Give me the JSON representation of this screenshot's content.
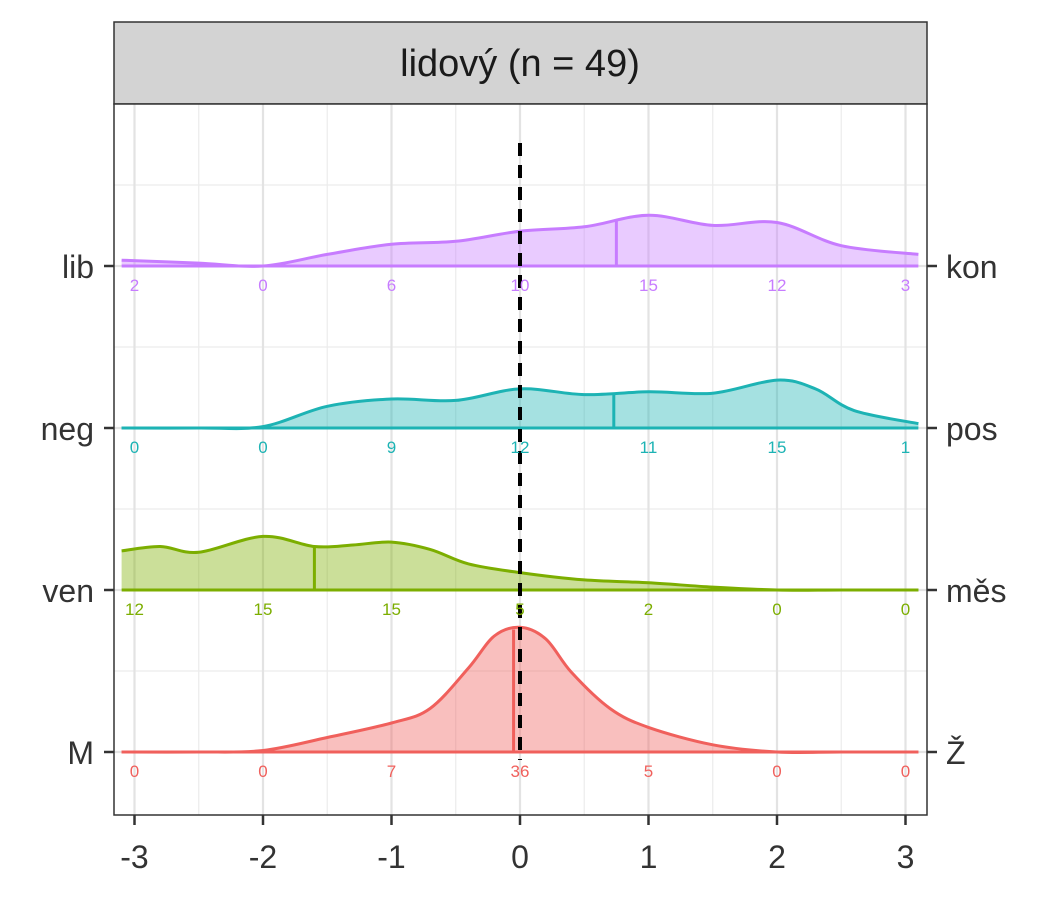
{
  "chart_data": {
    "type": "ridgeline-density",
    "title": "lidový (n = 49)",
    "xlim": [
      -3,
      3
    ],
    "x_ticks": [
      -3,
      -2,
      -1,
      0,
      1,
      2,
      3
    ],
    "x_tick_labels": [
      "-3",
      "-2",
      "-1",
      "0",
      "1",
      "2",
      "3"
    ],
    "reference_line_x": 0,
    "grid": true,
    "series": [
      {
        "left_label": "M",
        "right_label": "Ž",
        "color": "#F0605C",
        "mean": -0.05,
        "counts": [
          "0",
          "0",
          "7",
          "36",
          "5",
          "0",
          "0"
        ],
        "density_x": [
          -3.1,
          -2.5,
          -2.0,
          -1.5,
          -1.0,
          -0.7,
          -0.4,
          -0.2,
          0.0,
          0.2,
          0.4,
          0.7,
          1.0,
          1.5,
          2.0,
          2.5,
          3.1
        ],
        "density_y": [
          0,
          0,
          0.01,
          0.1,
          0.2,
          0.3,
          0.58,
          0.8,
          0.86,
          0.78,
          0.55,
          0.3,
          0.17,
          0.05,
          0,
          0,
          0
        ]
      },
      {
        "left_label": "ven",
        "right_label": "měs",
        "color": "#7CAE00",
        "mean": -1.6,
        "counts": [
          "12",
          "15",
          "15",
          "5",
          "2",
          "0",
          "0"
        ],
        "density_x": [
          -3.1,
          -2.8,
          -2.5,
          -2.0,
          -1.6,
          -1.3,
          -1.0,
          -0.7,
          -0.4,
          0.0,
          0.5,
          1.0,
          1.5,
          2.0,
          2.5,
          3.1
        ],
        "density_y": [
          0.27,
          0.3,
          0.26,
          0.37,
          0.3,
          0.31,
          0.33,
          0.28,
          0.18,
          0.12,
          0.07,
          0.05,
          0.02,
          0,
          0,
          0
        ]
      },
      {
        "left_label": "neg",
        "right_label": "pos",
        "color": "#1DB3B4",
        "mean": 0.73,
        "counts": [
          "0",
          "0",
          "9",
          "12",
          "11",
          "15",
          "1"
        ],
        "density_x": [
          -3.1,
          -2.5,
          -2.0,
          -1.5,
          -1.0,
          -0.5,
          0.0,
          0.5,
          1.0,
          1.5,
          2.0,
          2.3,
          2.6,
          3.1
        ],
        "density_y": [
          0,
          0,
          0.01,
          0.15,
          0.2,
          0.19,
          0.27,
          0.23,
          0.25,
          0.24,
          0.33,
          0.27,
          0.12,
          0.03
        ]
      },
      {
        "left_label": "lib",
        "right_label": "kon",
        "color": "#C77CFF",
        "mean": 0.75,
        "counts": [
          "2",
          "0",
          "6",
          "10",
          "15",
          "12",
          "3"
        ],
        "density_x": [
          -3.1,
          -2.5,
          -2.0,
          -1.5,
          -1.0,
          -0.5,
          0.0,
          0.5,
          1.0,
          1.5,
          2.0,
          2.5,
          3.1
        ],
        "density_y": [
          0.04,
          0.02,
          0.0,
          0.08,
          0.15,
          0.17,
          0.24,
          0.27,
          0.35,
          0.28,
          0.3,
          0.14,
          0.08
        ]
      }
    ]
  }
}
